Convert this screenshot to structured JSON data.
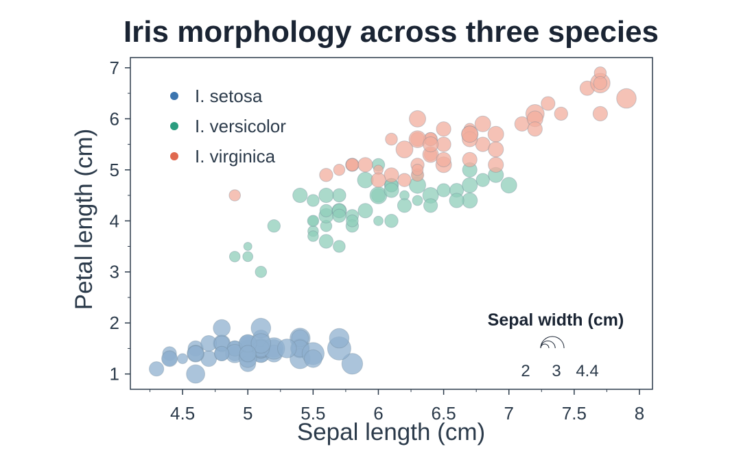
{
  "chart_data": {
    "type": "scatter",
    "title": "Iris morphology across three species",
    "xlabel": "Sepal length (cm)",
    "ylabel": "Petal length (cm)",
    "xlim": [
      4.1,
      8.1
    ],
    "ylim": [
      0.7,
      7.2
    ],
    "x_ticks": [
      4.5,
      5,
      5.5,
      6,
      6.5,
      7,
      7.5,
      8
    ],
    "y_ticks": [
      1,
      2,
      3,
      4,
      5,
      6,
      7
    ],
    "grid": false,
    "legend_position": "top-left",
    "size_legend": {
      "title": "Sepal width (cm)",
      "values": [
        2,
        3,
        4.4
      ],
      "labels": [
        "2",
        "3",
        "4.4"
      ],
      "position": "bottom-right"
    },
    "series": [
      {
        "name": "I. setosa",
        "color": "#3b75af",
        "marker_color": "#8fb0cf",
        "x": [
          5.1,
          4.9,
          4.7,
          4.6,
          5.0,
          5.4,
          4.6,
          5.0,
          4.4,
          4.9,
          5.4,
          4.8,
          4.8,
          4.3,
          5.8,
          5.7,
          5.4,
          5.1,
          5.7,
          5.1,
          5.4,
          5.1,
          4.6,
          5.1,
          4.8,
          5.0,
          5.0,
          5.2,
          5.2,
          4.7,
          4.8,
          5.4,
          5.2,
          5.5,
          4.9,
          5.0,
          5.5,
          4.9,
          4.4,
          5.1,
          5.0,
          4.5,
          4.4,
          5.0,
          5.1,
          4.8,
          5.1,
          4.6,
          5.3,
          5.0
        ],
        "y": [
          1.4,
          1.4,
          1.3,
          1.5,
          1.4,
          1.7,
          1.4,
          1.5,
          1.4,
          1.5,
          1.5,
          1.6,
          1.4,
          1.1,
          1.2,
          1.5,
          1.3,
          1.4,
          1.7,
          1.5,
          1.7,
          1.5,
          1.0,
          1.7,
          1.9,
          1.6,
          1.6,
          1.5,
          1.4,
          1.6,
          1.6,
          1.5,
          1.5,
          1.4,
          1.5,
          1.2,
          1.3,
          1.4,
          1.3,
          1.5,
          1.3,
          1.3,
          1.3,
          1.6,
          1.9,
          1.4,
          1.6,
          1.4,
          1.5,
          1.4
        ],
        "size": [
          3.5,
          3.0,
          3.2,
          3.1,
          3.6,
          3.9,
          3.4,
          3.4,
          2.9,
          3.1,
          3.7,
          3.4,
          3.0,
          3.0,
          4.0,
          4.4,
          3.9,
          3.5,
          3.8,
          3.8,
          3.4,
          3.7,
          3.6,
          3.3,
          3.4,
          3.0,
          3.4,
          3.5,
          3.4,
          3.2,
          3.1,
          3.4,
          4.1,
          4.2,
          3.1,
          3.2,
          3.5,
          3.6,
          3.0,
          3.4,
          3.5,
          2.3,
          3.2,
          3.5,
          3.8,
          3.0,
          3.8,
          3.2,
          3.7,
          3.3
        ]
      },
      {
        "name": "I. versicolor",
        "color": "#2a9d7f",
        "marker_color": "#8fcdb9",
        "x": [
          7.0,
          6.4,
          6.9,
          5.5,
          6.5,
          5.7,
          6.3,
          4.9,
          6.6,
          5.2,
          5.0,
          5.9,
          6.0,
          6.1,
          5.6,
          6.7,
          5.6,
          5.8,
          6.2,
          5.6,
          5.9,
          6.1,
          6.3,
          6.1,
          6.4,
          6.6,
          6.8,
          6.7,
          6.0,
          5.7,
          5.5,
          5.5,
          5.8,
          6.0,
          5.4,
          6.0,
          6.7,
          6.3,
          5.6,
          5.5,
          5.5,
          6.1,
          5.8,
          5.0,
          5.6,
          5.7,
          5.7,
          6.2,
          5.1,
          5.7
        ],
        "y": [
          4.7,
          4.5,
          4.9,
          4.0,
          4.6,
          4.5,
          4.7,
          3.3,
          4.6,
          3.9,
          3.5,
          4.2,
          4.0,
          4.7,
          3.6,
          4.4,
          4.5,
          4.1,
          4.5,
          3.9,
          4.8,
          4.0,
          4.9,
          4.7,
          4.3,
          4.4,
          4.8,
          5.0,
          4.5,
          3.5,
          3.8,
          3.7,
          3.9,
          5.1,
          4.5,
          4.5,
          4.7,
          4.4,
          4.1,
          4.0,
          4.4,
          4.6,
          4.0,
          3.3,
          4.2,
          4.2,
          4.2,
          4.3,
          3.0,
          4.1
        ],
        "size": [
          3.2,
          3.2,
          3.1,
          2.3,
          2.8,
          2.8,
          3.3,
          2.4,
          2.9,
          2.7,
          2.0,
          3.0,
          2.2,
          2.9,
          2.9,
          3.1,
          3.0,
          2.7,
          2.2,
          2.5,
          3.2,
          2.8,
          2.5,
          2.8,
          2.9,
          3.0,
          2.8,
          3.0,
          2.9,
          2.6,
          2.4,
          2.4,
          2.7,
          2.7,
          3.0,
          3.4,
          3.1,
          2.3,
          3.0,
          2.5,
          2.6,
          3.0,
          2.6,
          2.3,
          2.7,
          3.0,
          2.9,
          2.9,
          2.5,
          2.8
        ]
      },
      {
        "name": "I. virginica",
        "color": "#e0694f",
        "marker_color": "#f2ad9e",
        "x": [
          6.3,
          5.8,
          7.1,
          6.3,
          6.5,
          7.6,
          4.9,
          7.3,
          6.7,
          7.2,
          6.5,
          6.4,
          6.8,
          5.7,
          5.8,
          6.4,
          6.5,
          7.7,
          7.7,
          6.0,
          6.9,
          5.6,
          7.7,
          6.3,
          6.7,
          7.2,
          6.2,
          6.1,
          6.4,
          7.2,
          7.4,
          7.9,
          6.4,
          6.3,
          6.1,
          7.7,
          6.3,
          6.4,
          6.0,
          6.9,
          6.7,
          6.9,
          5.8,
          6.8,
          6.7,
          6.7,
          6.3,
          6.5,
          6.2,
          5.9
        ],
        "y": [
          6.0,
          5.1,
          5.9,
          5.6,
          5.8,
          6.6,
          4.5,
          6.3,
          5.8,
          6.1,
          5.1,
          5.3,
          5.5,
          5.0,
          5.1,
          5.3,
          5.5,
          6.7,
          6.9,
          5.0,
          5.7,
          4.9,
          6.7,
          4.9,
          5.7,
          6.0,
          4.8,
          4.9,
          5.6,
          5.8,
          6.1,
          6.4,
          5.6,
          5.1,
          5.6,
          6.1,
          5.6,
          5.5,
          4.8,
          5.4,
          5.6,
          5.1,
          5.1,
          5.9,
          5.7,
          5.2,
          5.0,
          5.2,
          5.4,
          5.1
        ],
        "size": [
          3.3,
          2.7,
          3.0,
          2.9,
          3.0,
          3.0,
          2.5,
          2.9,
          2.5,
          3.6,
          3.2,
          2.7,
          3.0,
          2.5,
          2.8,
          3.2,
          3.0,
          3.8,
          2.6,
          2.2,
          3.2,
          2.8,
          2.8,
          2.7,
          3.3,
          3.2,
          2.8,
          3.0,
          2.8,
          3.0,
          2.8,
          3.8,
          2.8,
          2.8,
          2.6,
          3.0,
          3.4,
          3.1,
          3.0,
          3.1,
          3.1,
          3.1,
          2.7,
          3.2,
          3.3,
          3.0,
          2.5,
          3.0,
          3.4,
          3.0
        ]
      }
    ]
  }
}
